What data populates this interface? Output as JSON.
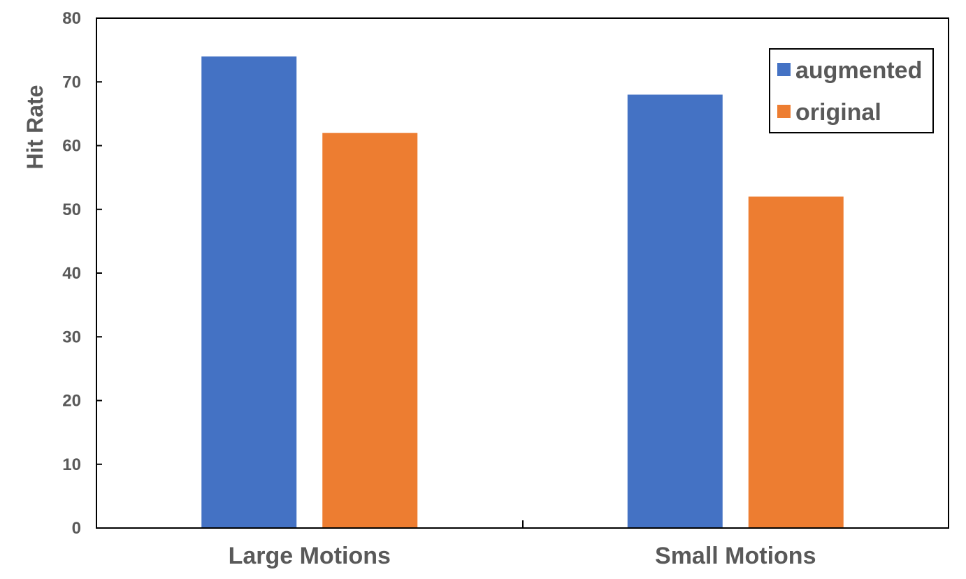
{
  "chart_data": {
    "type": "bar",
    "categories": [
      "Large Motions",
      "Small Motions"
    ],
    "series": [
      {
        "name": "augmented",
        "values": [
          74,
          68
        ],
        "color": "#4472C4"
      },
      {
        "name": "original",
        "values": [
          62,
          52
        ],
        "color": "#ED7D31"
      }
    ],
    "title": "",
    "xlabel": "",
    "ylabel": "Hit Rate",
    "ylim": [
      0,
      80
    ],
    "yticks": [
      0,
      10,
      20,
      30,
      40,
      50,
      60,
      70,
      80
    ],
    "grid": false,
    "legend": "top-right"
  }
}
